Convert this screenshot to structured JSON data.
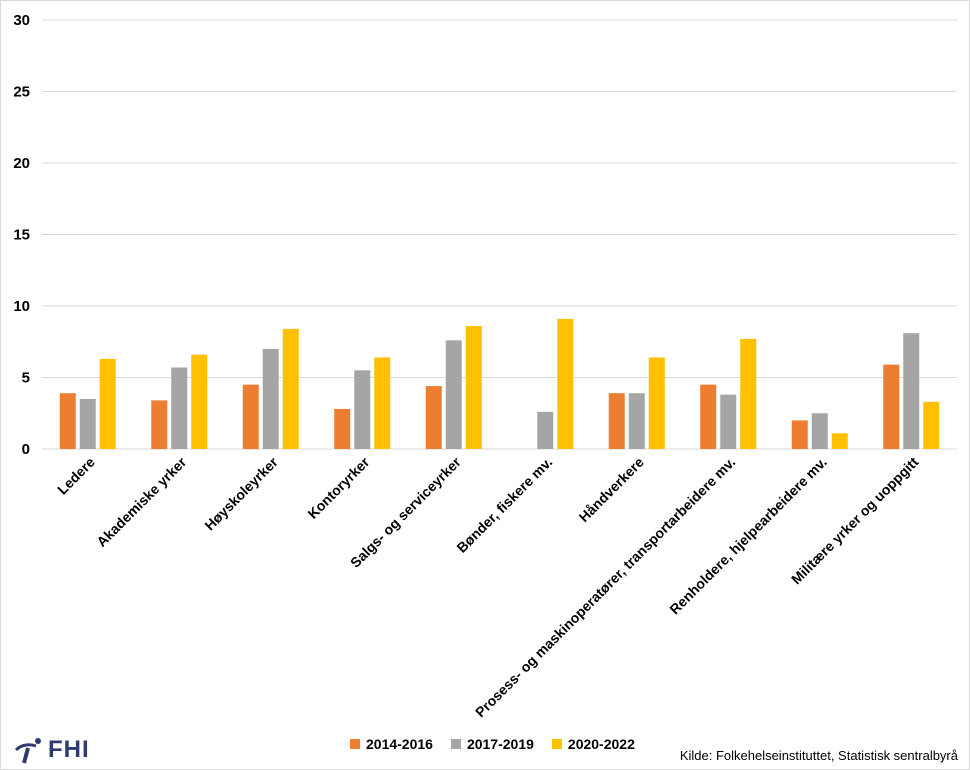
{
  "chart_data": {
    "type": "bar",
    "categories": [
      "Ledere",
      "Akademiske yrker",
      "Høyskoleyrker",
      "Kontoryrker",
      "Salgs- og serviceyrker",
      "Bønder, fiskere mv.",
      "Håndverkere",
      "Prosess- og maskinoperatører, transportarbeidere mv.",
      "Renholdere, hjelpearbeidere mv.",
      "Militære yrker og uoppgitt"
    ],
    "series": [
      {
        "name": "2014-2016",
        "color": "#ED7D31",
        "values": [
          3.9,
          3.4,
          4.5,
          2.8,
          4.4,
          null,
          3.9,
          4.5,
          2.0,
          5.9
        ]
      },
      {
        "name": "2017-2019",
        "color": "#A5A5A5",
        "values": [
          3.5,
          5.7,
          7.0,
          5.5,
          7.6,
          2.6,
          3.9,
          3.8,
          2.5,
          8.1
        ]
      },
      {
        "name": "2020-2022",
        "color": "#FFC000",
        "values": [
          6.3,
          6.6,
          8.4,
          6.4,
          8.6,
          9.1,
          6.4,
          7.7,
          1.1,
          3.3
        ]
      }
    ],
    "ylim": [
      0,
      30
    ],
    "yticks": [
      0,
      5,
      10,
      15,
      20,
      25,
      30
    ],
    "grid": true,
    "legend": "bottom"
  },
  "footer": {
    "logo": "FHI",
    "source": "Kilde: Folkehelseinstituttet, Statistisk sentralbyrå"
  }
}
